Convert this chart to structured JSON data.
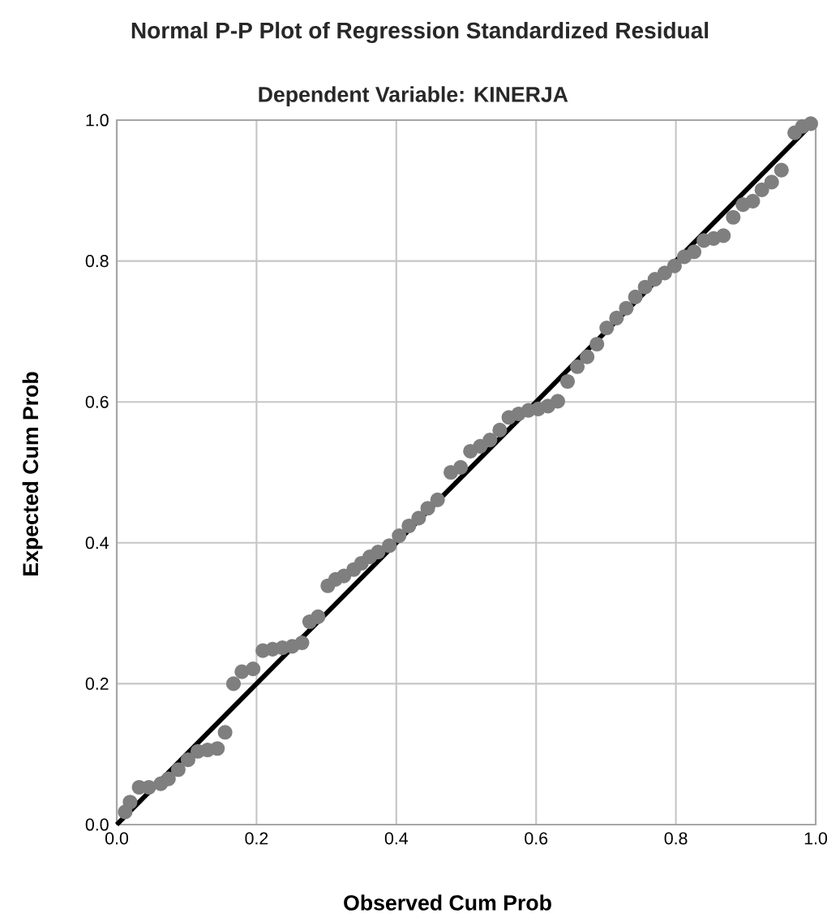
{
  "chart_data": {
    "type": "scatter",
    "title": "Normal P-P Plot of Regression Standardized Residual",
    "subtitle": "Dependent Variable: KINERJA",
    "xlabel": "Observed Cum Prob",
    "ylabel": "Expected Cum Prob",
    "xlim": [
      0,
      1
    ],
    "ylim": [
      0,
      1
    ],
    "xticks": [
      {
        "value": 0,
        "label": "0.0"
      },
      0.2,
      0.4,
      0.6,
      0.8,
      {
        "value": 1,
        "label": "1.0"
      }
    ],
    "yticks": [
      {
        "value": 0,
        "label": "0.0"
      },
      0.2,
      0.4,
      0.6,
      0.8,
      {
        "value": 1,
        "label": "1.0"
      }
    ],
    "grid": true,
    "series": [
      {
        "color": "#7f7f7f",
        "marker": "circle",
        "x": [
          0.012,
          0.019,
          0.032,
          0.046,
          0.063,
          0.074,
          0.088,
          0.102,
          0.116,
          0.13,
          0.144,
          0.155,
          0.167,
          0.179,
          0.195,
          0.209,
          0.223,
          0.237,
          0.251,
          0.265,
          0.276,
          0.288,
          0.302,
          0.313,
          0.325,
          0.339,
          0.35,
          0.362,
          0.374,
          0.39,
          0.404,
          0.418,
          0.432,
          0.445,
          0.459,
          0.478,
          0.492,
          0.506,
          0.52,
          0.534,
          0.548,
          0.561,
          0.575,
          0.589,
          0.603,
          0.617,
          0.631,
          0.645,
          0.659,
          0.673,
          0.687,
          0.701,
          0.715,
          0.729,
          0.742,
          0.756,
          0.77,
          0.784,
          0.798,
          0.812,
          0.826,
          0.84,
          0.854,
          0.868,
          0.882,
          0.896,
          0.91,
          0.923,
          0.937,
          0.951,
          0.97,
          0.981,
          0.993
        ],
        "values": [
          0.018,
          0.032,
          0.053,
          0.053,
          0.058,
          0.065,
          0.078,
          0.092,
          0.104,
          0.106,
          0.108,
          0.131,
          0.2,
          0.217,
          0.221,
          0.247,
          0.249,
          0.251,
          0.253,
          0.258,
          0.288,
          0.295,
          0.339,
          0.348,
          0.353,
          0.362,
          0.371,
          0.38,
          0.387,
          0.396,
          0.41,
          0.424,
          0.435,
          0.449,
          0.461,
          0.5,
          0.507,
          0.53,
          0.537,
          0.546,
          0.56,
          0.578,
          0.583,
          0.588,
          0.59,
          0.594,
          0.601,
          0.629,
          0.65,
          0.664,
          0.682,
          0.705,
          0.719,
          0.733,
          0.749,
          0.763,
          0.774,
          0.783,
          0.793,
          0.806,
          0.813,
          0.829,
          0.832,
          0.836,
          0.862,
          0.88,
          0.885,
          0.901,
          0.912,
          0.929,
          0.982,
          0.991,
          0.995
        ]
      },
      {
        "type": "line",
        "color": "#000000",
        "line_style": "solid",
        "x": [
          0,
          1
        ],
        "values": [
          0,
          1
        ]
      }
    ]
  }
}
